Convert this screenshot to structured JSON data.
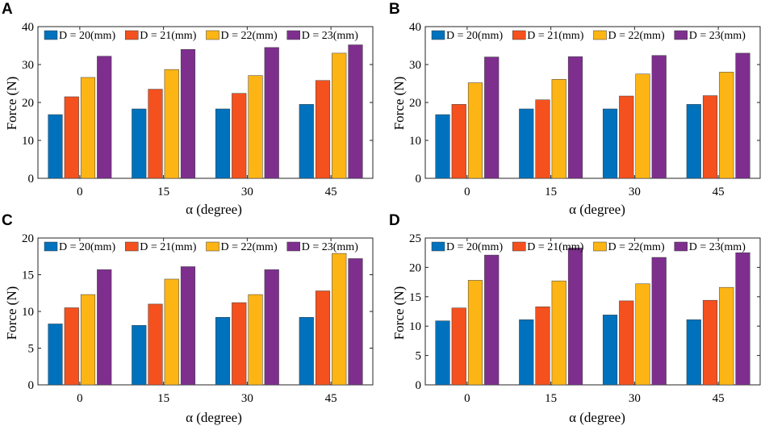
{
  "colors": {
    "D20": "#0072BD",
    "D21": "#F4511E",
    "D22": "#FDB515",
    "D23": "#7E2F8E"
  },
  "chart_data": [
    {
      "panel": "A",
      "type": "bar",
      "categories": [
        "0",
        "15",
        "30",
        "45"
      ],
      "xlabel": "α (degree)",
      "ylabel": "Force (N)",
      "ylim": [
        0,
        40
      ],
      "yticks": [
        "0",
        "10",
        "20",
        "30",
        "40"
      ],
      "series": [
        {
          "name": "D = 20(mm)",
          "values": [
            16.8,
            18.3,
            18.3,
            19.5
          ]
        },
        {
          "name": "D = 21(mm)",
          "values": [
            21.5,
            23.5,
            22.4,
            25.8
          ]
        },
        {
          "name": "D = 22(mm)",
          "values": [
            26.6,
            28.7,
            27.1,
            33.0
          ]
        },
        {
          "name": "D = 23(mm)",
          "values": [
            32.2,
            34.0,
            34.5,
            35.2
          ]
        }
      ]
    },
    {
      "panel": "B",
      "type": "bar",
      "categories": [
        "0",
        "15",
        "30",
        "45"
      ],
      "xlabel": "α (degree)",
      "ylabel": "Force (N)",
      "ylim": [
        0,
        40
      ],
      "yticks": [
        "0",
        "10",
        "20",
        "30",
        "40"
      ],
      "series": [
        {
          "name": "D = 20(mm)",
          "values": [
            16.8,
            18.3,
            18.3,
            19.5
          ]
        },
        {
          "name": "D = 21(mm)",
          "values": [
            19.5,
            20.7,
            21.7,
            21.8
          ]
        },
        {
          "name": "D = 22(mm)",
          "values": [
            25.2,
            26.1,
            27.5,
            28.0
          ]
        },
        {
          "name": "D = 23(mm)",
          "values": [
            32.0,
            32.1,
            32.4,
            33.0
          ]
        }
      ]
    },
    {
      "panel": "C",
      "type": "bar",
      "categories": [
        "0",
        "15",
        "30",
        "45"
      ],
      "xlabel": "α (degree)",
      "ylabel": "Force (N)",
      "ylim": [
        0,
        20
      ],
      "yticks": [
        "0",
        "5",
        "10",
        "15",
        "20"
      ],
      "series": [
        {
          "name": "D = 20(mm)",
          "values": [
            8.3,
            8.1,
            9.2,
            9.2
          ]
        },
        {
          "name": "D = 21(mm)",
          "values": [
            10.5,
            11.0,
            11.2,
            12.8
          ]
        },
        {
          "name": "D = 22(mm)",
          "values": [
            12.3,
            14.4,
            12.3,
            17.9
          ]
        },
        {
          "name": "D = 23(mm)",
          "values": [
            15.7,
            16.1,
            15.7,
            17.2
          ]
        }
      ]
    },
    {
      "panel": "D",
      "type": "bar",
      "categories": [
        "0",
        "15",
        "30",
        "45"
      ],
      "xlabel": "α (degree)",
      "ylabel": "Force (N)",
      "ylim": [
        0,
        25
      ],
      "yticks": [
        "0",
        "5",
        "10",
        "15",
        "20",
        "25"
      ],
      "series": [
        {
          "name": "D = 20(mm)",
          "values": [
            10.9,
            11.1,
            11.9,
            11.1
          ]
        },
        {
          "name": "D = 21(mm)",
          "values": [
            13.1,
            13.3,
            14.3,
            14.4
          ]
        },
        {
          "name": "D = 22(mm)",
          "values": [
            17.8,
            17.7,
            17.2,
            16.6
          ]
        },
        {
          "name": "D = 23(mm)",
          "values": [
            22.1,
            23.3,
            21.7,
            22.5
          ]
        }
      ]
    }
  ]
}
